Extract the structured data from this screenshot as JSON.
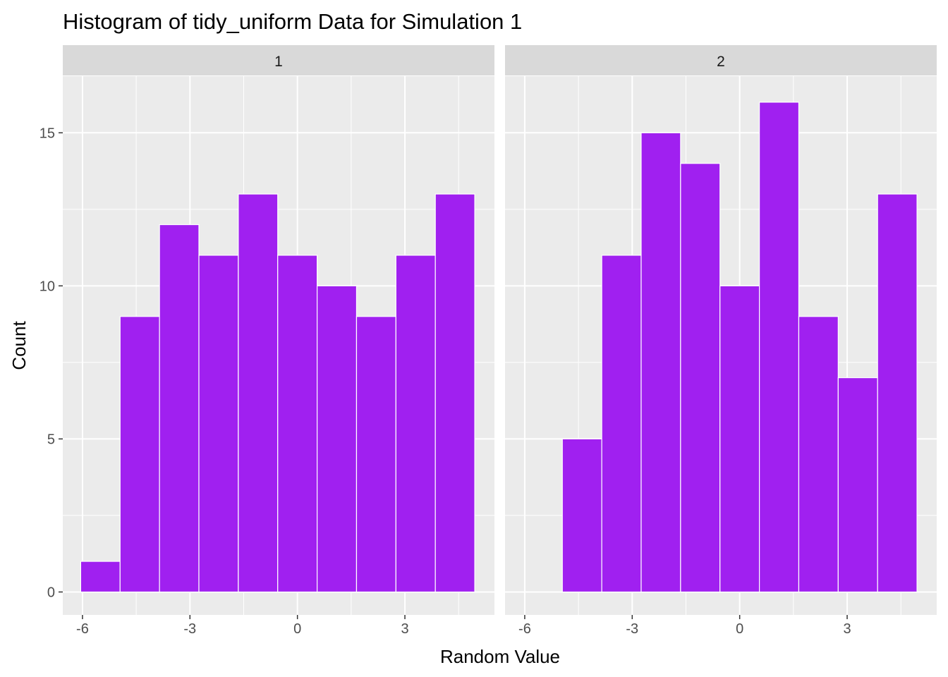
{
  "chart_data": {
    "type": "bar",
    "subtype": "faceted-histogram",
    "title": "Histogram of tidy_uniform Data for Simulation 1",
    "xlabel": "Random Value",
    "ylabel": "Count",
    "xlim": [
      -6.55,
      5.5
    ],
    "ylim": [
      -0.75,
      16.85
    ],
    "x_ticks": [
      -6,
      -3,
      0,
      3
    ],
    "x_tick_labels": [
      "-6",
      "-3",
      "0",
      "3"
    ],
    "y_ticks": [
      0,
      5,
      10,
      15
    ],
    "y_tick_labels": [
      "0",
      "5",
      "10",
      "15"
    ],
    "bin_width": 1.1,
    "bin_starts": [
      -6.05,
      -4.95,
      -3.85,
      -2.75,
      -1.65,
      -0.55,
      0.55,
      1.65,
      2.75,
      3.85
    ],
    "bar_color": "#A020F0",
    "bar_outline": "#FFFFFF",
    "panel_background": "#EBEBEB",
    "strip_background": "#D9D9D9",
    "grid": true,
    "facets": [
      {
        "label": "1",
        "counts": [
          1,
          9,
          12,
          11,
          13,
          11,
          10,
          9,
          11,
          13
        ]
      },
      {
        "label": "2",
        "counts": [
          0,
          5,
          11,
          15,
          14,
          10,
          16,
          9,
          7,
          13
        ]
      }
    ]
  }
}
